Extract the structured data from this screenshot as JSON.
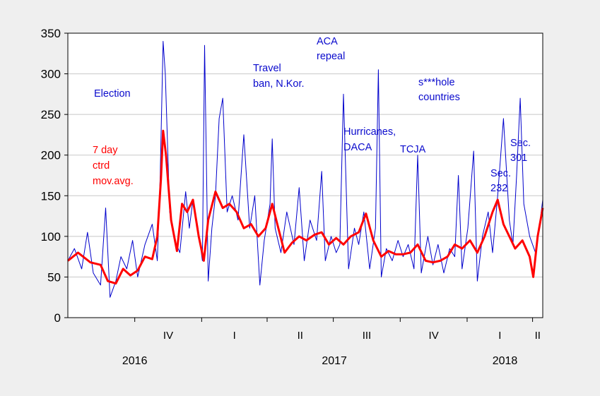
{
  "chart_data": {
    "type": "line",
    "title": "",
    "xlabel": "",
    "ylabel": "",
    "ylim": [
      0,
      350
    ],
    "yticks": [
      0,
      50,
      100,
      150,
      200,
      250,
      300,
      350
    ],
    "grid": "horizontal",
    "x_quarter_ticks": [
      {
        "label": "IV",
        "year": 2016,
        "q": 4
      },
      {
        "label": "I",
        "year": 2017,
        "q": 1
      },
      {
        "label": "II",
        "year": 2017,
        "q": 2
      },
      {
        "label": "III",
        "year": 2017,
        "q": 3
      },
      {
        "label": "IV",
        "year": 2017,
        "q": 4
      },
      {
        "label": "I",
        "year": 2018,
        "q": 1
      },
      {
        "label": "II",
        "year": 2018,
        "q": 2
      }
    ],
    "year_labels": [
      "2016",
      "2017",
      "2018"
    ],
    "x_range": [
      "2016-07-01",
      "2018-04-15"
    ],
    "series": [
      {
        "name": "",
        "color": "#0000cc",
        "style": "thin",
        "points": [
          [
            "2016-07-01",
            70
          ],
          [
            "2016-07-10",
            85
          ],
          [
            "2016-07-20",
            60
          ],
          [
            "2016-07-28",
            105
          ],
          [
            "2016-08-05",
            55
          ],
          [
            "2016-08-15",
            40
          ],
          [
            "2016-08-22",
            135
          ],
          [
            "2016-08-28",
            25
          ],
          [
            "2016-09-05",
            45
          ],
          [
            "2016-09-12",
            75
          ],
          [
            "2016-09-20",
            60
          ],
          [
            "2016-09-28",
            95
          ],
          [
            "2016-10-05",
            50
          ],
          [
            "2016-10-15",
            90
          ],
          [
            "2016-10-25",
            115
          ],
          [
            "2016-11-01",
            70
          ],
          [
            "2016-11-05",
            175
          ],
          [
            "2016-11-07",
            260
          ],
          [
            "2016-11-09",
            340
          ],
          [
            "2016-11-12",
            300
          ],
          [
            "2016-11-18",
            130
          ],
          [
            "2016-11-25",
            95
          ],
          [
            "2016-12-02",
            80
          ],
          [
            "2016-12-10",
            155
          ],
          [
            "2016-12-15",
            110
          ],
          [
            "2016-12-20",
            145
          ],
          [
            "2016-12-27",
            110
          ],
          [
            "2017-01-02",
            70
          ],
          [
            "2017-01-05",
            335
          ],
          [
            "2017-01-10",
            45
          ],
          [
            "2017-01-15",
            110
          ],
          [
            "2017-01-20",
            150
          ],
          [
            "2017-01-25",
            245
          ],
          [
            "2017-01-30",
            270
          ],
          [
            "2017-02-05",
            130
          ],
          [
            "2017-02-12",
            150
          ],
          [
            "2017-02-20",
            120
          ],
          [
            "2017-02-28",
            225
          ],
          [
            "2017-03-08",
            110
          ],
          [
            "2017-03-15",
            150
          ],
          [
            "2017-03-22",
            40
          ],
          [
            "2017-03-28",
            95
          ],
          [
            "2017-04-05",
            140
          ],
          [
            "2017-04-08",
            220
          ],
          [
            "2017-04-12",
            110
          ],
          [
            "2017-04-20",
            80
          ],
          [
            "2017-04-28",
            130
          ],
          [
            "2017-05-08",
            90
          ],
          [
            "2017-05-15",
            160
          ],
          [
            "2017-05-22",
            70
          ],
          [
            "2017-05-30",
            120
          ],
          [
            "2017-06-08",
            95
          ],
          [
            "2017-06-15",
            180
          ],
          [
            "2017-06-20",
            70
          ],
          [
            "2017-06-28",
            100
          ],
          [
            "2017-07-05",
            80
          ],
          [
            "2017-07-10",
            90
          ],
          [
            "2017-07-15",
            275
          ],
          [
            "2017-07-22",
            60
          ],
          [
            "2017-07-30",
            110
          ],
          [
            "2017-08-05",
            90
          ],
          [
            "2017-08-12",
            130
          ],
          [
            "2017-08-20",
            60
          ],
          [
            "2017-08-28",
            110
          ],
          [
            "2017-09-01",
            305
          ],
          [
            "2017-09-05",
            50
          ],
          [
            "2017-09-12",
            85
          ],
          [
            "2017-09-20",
            70
          ],
          [
            "2017-09-28",
            95
          ],
          [
            "2017-10-05",
            75
          ],
          [
            "2017-10-12",
            90
          ],
          [
            "2017-10-20",
            60
          ],
          [
            "2017-10-25",
            200
          ],
          [
            "2017-10-30",
            55
          ],
          [
            "2017-11-08",
            100
          ],
          [
            "2017-11-15",
            65
          ],
          [
            "2017-11-22",
            90
          ],
          [
            "2017-11-30",
            55
          ],
          [
            "2017-12-08",
            85
          ],
          [
            "2017-12-15",
            75
          ],
          [
            "2017-12-20",
            175
          ],
          [
            "2017-12-25",
            60
          ],
          [
            "2018-01-02",
            110
          ],
          [
            "2018-01-10",
            205
          ],
          [
            "2018-01-15",
            45
          ],
          [
            "2018-01-22",
            100
          ],
          [
            "2018-01-30",
            130
          ],
          [
            "2018-02-05",
            80
          ],
          [
            "2018-02-12",
            150
          ],
          [
            "2018-02-20",
            245
          ],
          [
            "2018-02-28",
            120
          ],
          [
            "2018-03-05",
            90
          ],
          [
            "2018-03-10",
            175
          ],
          [
            "2018-03-15",
            270
          ],
          [
            "2018-03-20",
            140
          ],
          [
            "2018-03-28",
            100
          ],
          [
            "2018-04-05",
            80
          ],
          [
            "2018-04-10",
            110
          ],
          [
            "2018-04-15",
            145
          ]
        ]
      },
      {
        "name": "7 day ctrd mov.avg.",
        "color": "#ff0000",
        "style": "thick",
        "points": [
          [
            "2016-07-01",
            70
          ],
          [
            "2016-07-15",
            80
          ],
          [
            "2016-08-01",
            68
          ],
          [
            "2016-08-15",
            65
          ],
          [
            "2016-08-25",
            45
          ],
          [
            "2016-09-05",
            42
          ],
          [
            "2016-09-15",
            60
          ],
          [
            "2016-09-25",
            52
          ],
          [
            "2016-10-05",
            58
          ],
          [
            "2016-10-15",
            75
          ],
          [
            "2016-10-25",
            72
          ],
          [
            "2016-11-01",
            100
          ],
          [
            "2016-11-06",
            170
          ],
          [
            "2016-11-09",
            230
          ],
          [
            "2016-11-13",
            200
          ],
          [
            "2016-11-20",
            120
          ],
          [
            "2016-11-28",
            82
          ],
          [
            "2016-12-05",
            140
          ],
          [
            "2016-12-12",
            130
          ],
          [
            "2016-12-20",
            145
          ],
          [
            "2016-12-28",
            100
          ],
          [
            "2017-01-04",
            70
          ],
          [
            "2017-01-10",
            120
          ],
          [
            "2017-01-20",
            155
          ],
          [
            "2017-01-30",
            135
          ],
          [
            "2017-02-08",
            140
          ],
          [
            "2017-02-18",
            130
          ],
          [
            "2017-02-28",
            110
          ],
          [
            "2017-03-10",
            115
          ],
          [
            "2017-03-20",
            100
          ],
          [
            "2017-03-30",
            110
          ],
          [
            "2017-04-08",
            140
          ],
          [
            "2017-04-15",
            115
          ],
          [
            "2017-04-25",
            80
          ],
          [
            "2017-05-05",
            92
          ],
          [
            "2017-05-15",
            100
          ],
          [
            "2017-05-25",
            95
          ],
          [
            "2017-06-05",
            102
          ],
          [
            "2017-06-15",
            105
          ],
          [
            "2017-06-25",
            90
          ],
          [
            "2017-07-05",
            98
          ],
          [
            "2017-07-15",
            90
          ],
          [
            "2017-07-25",
            100
          ],
          [
            "2017-08-05",
            105
          ],
          [
            "2017-08-15",
            128
          ],
          [
            "2017-08-25",
            95
          ],
          [
            "2017-09-05",
            75
          ],
          [
            "2017-09-15",
            82
          ],
          [
            "2017-09-25",
            78
          ],
          [
            "2017-10-05",
            78
          ],
          [
            "2017-10-15",
            80
          ],
          [
            "2017-10-25",
            90
          ],
          [
            "2017-11-05",
            70
          ],
          [
            "2017-11-15",
            68
          ],
          [
            "2017-11-25",
            70
          ],
          [
            "2017-12-05",
            75
          ],
          [
            "2017-12-15",
            90
          ],
          [
            "2017-12-25",
            85
          ],
          [
            "2018-01-05",
            95
          ],
          [
            "2018-01-15",
            80
          ],
          [
            "2018-01-25",
            100
          ],
          [
            "2018-02-05",
            130
          ],
          [
            "2018-02-12",
            145
          ],
          [
            "2018-02-20",
            115
          ],
          [
            "2018-02-28",
            100
          ],
          [
            "2018-03-08",
            85
          ],
          [
            "2018-03-18",
            95
          ],
          [
            "2018-03-28",
            75
          ],
          [
            "2018-04-02",
            50
          ],
          [
            "2018-04-08",
            100
          ],
          [
            "2018-04-15",
            135
          ]
        ]
      }
    ],
    "annotations": [
      {
        "text": "Election",
        "color": "blue"
      },
      {
        "text": "Travel ban, N.Kor.",
        "color": "blue"
      },
      {
        "text": "ACA repeal",
        "color": "blue"
      },
      {
        "text": "Hurricanes, DACA",
        "color": "blue"
      },
      {
        "text": "TCJA",
        "color": "blue"
      },
      {
        "text": "s***hole countries",
        "color": "blue"
      },
      {
        "text": "Sec. 232",
        "color": "blue"
      },
      {
        "text": "Sec. 301",
        "color": "blue"
      },
      {
        "text": "7 day ctrd mov.avg.",
        "color": "red"
      }
    ]
  }
}
